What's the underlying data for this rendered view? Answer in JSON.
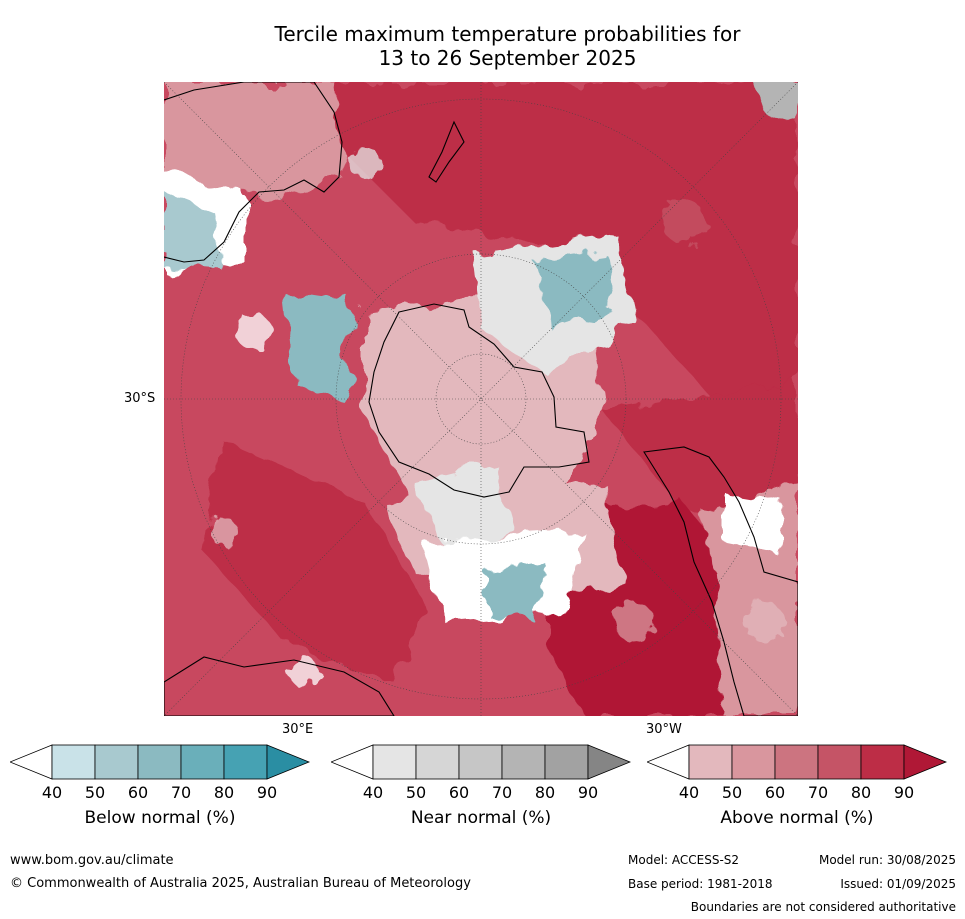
{
  "title_line1": "Tercile maximum temperature probabilities for",
  "title_line2": "13 to 26 September 2025",
  "map": {
    "lat_label": "30°S",
    "lon_label_east": "30°E",
    "lon_label_west": "30°W"
  },
  "colorbars": [
    {
      "label": "Below normal (%)",
      "ticks": [
        "40",
        "50",
        "60",
        "70",
        "80",
        "90"
      ],
      "colors": [
        "#ffffff",
        "#c9e2e8",
        "#a8c9cf",
        "#8bbac1",
        "#6aafba",
        "#46a2b3",
        "#2a8ea3"
      ]
    },
    {
      "label": "Near normal (%)",
      "ticks": [
        "40",
        "50",
        "60",
        "70",
        "80",
        "90"
      ],
      "colors": [
        "#ffffff",
        "#e5e5e5",
        "#d6d6d6",
        "#c6c6c6",
        "#b4b4b4",
        "#a2a2a2",
        "#858585"
      ]
    },
    {
      "label": "Above normal (%)",
      "ticks": [
        "40",
        "50",
        "60",
        "70",
        "80",
        "90"
      ],
      "colors": [
        "#ffffff",
        "#e3b8bd",
        "#d9969e",
        "#cc7480",
        "#c55466",
        "#bd2d46",
        "#b01836"
      ]
    }
  ],
  "footer": {
    "website": "www.bom.gov.au/climate",
    "copyright": "© Commonwealth of Australia 2025, Australian Bureau of Meteorology",
    "model": "Model: ACCESS-S2",
    "base_period": "Base period: 1981-2018",
    "model_run": "Model run: 30/08/2025",
    "issued": "Issued: 01/09/2025",
    "disclaimer": "Boundaries are not considered authoritative"
  }
}
